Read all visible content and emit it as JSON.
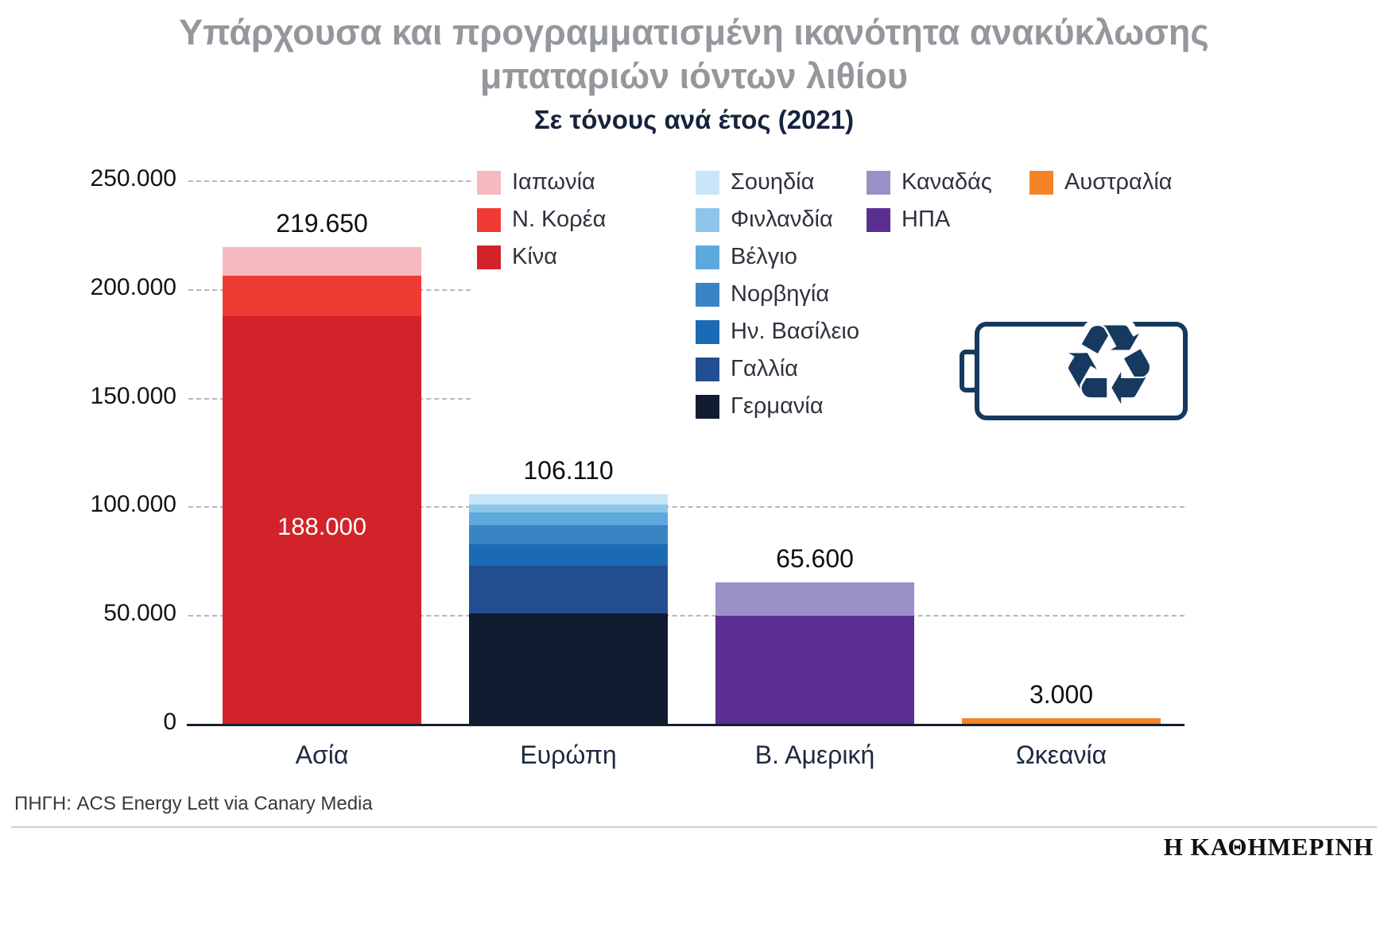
{
  "header": {
    "title_line1": "Υπάρχουσα και προγραμματισμένη ικανότητα ανακύκλωσης",
    "title_line2": "μπαταριών ιόντων λιθίου",
    "subtitle": "Σε τόνους ανά έτος (2021)"
  },
  "chart_data": {
    "type": "bar",
    "stacked": true,
    "title": "Υπάρχουσα και προγραμματισμένη ικανότητα ανακύκλωσης μπαταριών ιόντων λιθίου",
    "subtitle": "Σε τόνους ανά έτος (2021)",
    "unit": "τόνοι ανά έτος",
    "year": "2021",
    "grid": "dashed-horizontal",
    "legend_position": "top-right",
    "ylim": [
      0,
      250000
    ],
    "yticks": [
      "0",
      "50.000",
      "100.000",
      "150.000",
      "200.000",
      "250.000"
    ],
    "categories": [
      "Ασία",
      "Ευρώπη",
      "Β. Αμερική",
      "Ωκεανία"
    ],
    "bars": [
      {
        "category": "Ασία",
        "total": 219650,
        "total_label": "219.650",
        "segments": [
          {
            "name": "Κίνα",
            "value": 188000,
            "color": "#d2232a",
            "label": "188.000"
          },
          {
            "name": "Ν. Κορέα",
            "value": 18650,
            "color": "#ef3b33"
          },
          {
            "name": "Ιαπωνία",
            "value": 13000,
            "color": "#f7b9c0"
          }
        ]
      },
      {
        "category": "Ευρώπη",
        "total": 106110,
        "total_label": "106.110",
        "segments": [
          {
            "name": "Γερμανία",
            "value": 51000,
            "color": "#111c30"
          },
          {
            "name": "Γαλλία",
            "value": 22000,
            "color": "#234e91"
          },
          {
            "name": "Ην. Βασίλειο",
            "value": 10000,
            "color": "#1b6ab5"
          },
          {
            "name": "Νορβηγία",
            "value": 8610,
            "color": "#3b84c4"
          },
          {
            "name": "Βέλγιο",
            "value": 6000,
            "color": "#5ea9dc"
          },
          {
            "name": "Φινλανδία",
            "value": 3500,
            "color": "#8ec6ea"
          },
          {
            "name": "Σουηδία",
            "value": 5000,
            "color": "#c9e6f8"
          }
        ]
      },
      {
        "category": "Β. Αμερική",
        "total": 65600,
        "total_label": "65.600",
        "segments": [
          {
            "name": "ΗΠΑ",
            "value": 50000,
            "color": "#5b2f91"
          },
          {
            "name": "Καναδάς",
            "value": 15600,
            "color": "#9b8fc7"
          }
        ]
      },
      {
        "category": "Ωκεανία",
        "total": 3000,
        "total_label": "3.000",
        "segments": [
          {
            "name": "Αυστραλία",
            "value": 3000,
            "color": "#f58426"
          }
        ]
      }
    ],
    "legend": {
      "columns": [
        {
          "items": [
            {
              "label": "Ιαπωνία",
              "color": "#f7b9c0"
            },
            {
              "label": "Ν. Κορέα",
              "color": "#ef3b33"
            },
            {
              "label": "Κίνα",
              "color": "#d2232a"
            }
          ]
        },
        {
          "items": [
            {
              "label": "Σουηδία",
              "color": "#c9e6f8"
            },
            {
              "label": "Φινλανδία",
              "color": "#8ec6ea"
            },
            {
              "label": "Βέλγιο",
              "color": "#5ea9dc"
            },
            {
              "label": "Νορβηγία",
              "color": "#3b84c4"
            },
            {
              "label": "Ην. Βασίλειο",
              "color": "#1b6ab5"
            },
            {
              "label": "Γαλλία",
              "color": "#234e91"
            },
            {
              "label": "Γερμανία",
              "color": "#111c30"
            }
          ]
        },
        {
          "items": [
            {
              "label": "Καναδάς",
              "color": "#9b8fc7"
            },
            {
              "label": "ΗΠΑ",
              "color": "#5b2f91"
            }
          ]
        },
        {
          "items": [
            {
              "label": "Αυστραλία",
              "color": "#f58426"
            }
          ]
        }
      ]
    }
  },
  "icons": {
    "battery_recycle": {
      "glyph": "♻",
      "color": "#16395f"
    }
  },
  "footer": {
    "source": "ΠΗΓΗ: ACS Energy Lett via Canary Media",
    "brand": "Η ΚΑΘΗΜΕΡΙΝΗ"
  }
}
